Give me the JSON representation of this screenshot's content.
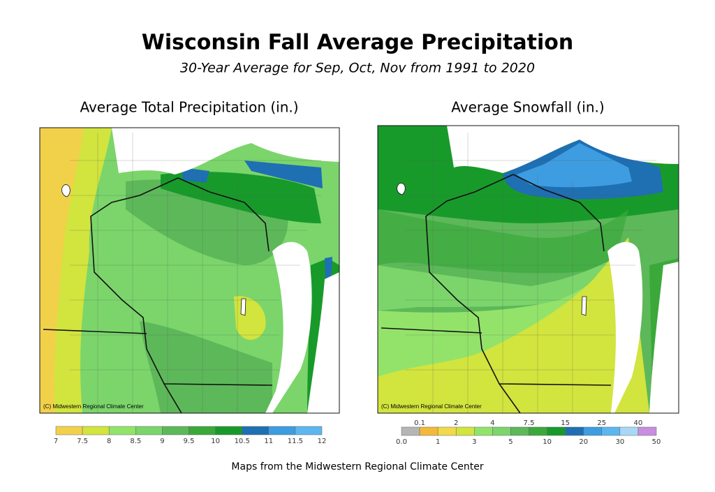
{
  "title": "Wisconsin Fall Average Precipitation",
  "subtitle": "30-Year Average for Sep, Oct, Nov from 1991 to 2020",
  "maps": [
    {
      "title": "Average Total Precipitation (in.)",
      "credit": "(C) Midwestern Regional Climate Center",
      "legend": {
        "ticks": [
          7,
          7.5,
          8,
          8.5,
          9,
          9.5,
          10,
          10.5,
          11,
          11.5,
          12
        ],
        "colors": [
          "#f2d14a",
          "#d2e43e",
          "#93e36b",
          "#7bd56b",
          "#5db85a",
          "#3aa93a",
          "#189a2b",
          "#1f6fb3",
          "#3d9de0",
          "#5cb6ef"
        ]
      }
    },
    {
      "title": "Average Snowfall (in.)",
      "credit": "(C) Midwestern Regional Climate Center",
      "legend": {
        "ticks": [
          {
            "value": 0,
            "label": "0.0"
          },
          0.1,
          1,
          2,
          3,
          4,
          5,
          7.5,
          10,
          15,
          20,
          25,
          30,
          40,
          50
        ],
        "colors": [
          "#b5b5b5",
          "#f5b93a",
          "#f2d94a",
          "#d2e43e",
          "#93e36b",
          "#7bd56b",
          "#5db85a",
          "#3aa93a",
          "#189a2b",
          "#1f6fb3",
          "#3d9de0",
          "#5cb6ef",
          "#a8d8f5",
          "#c88ee0"
        ]
      }
    }
  ],
  "footer": "Maps from the Midwestern Regional Climate Center"
}
